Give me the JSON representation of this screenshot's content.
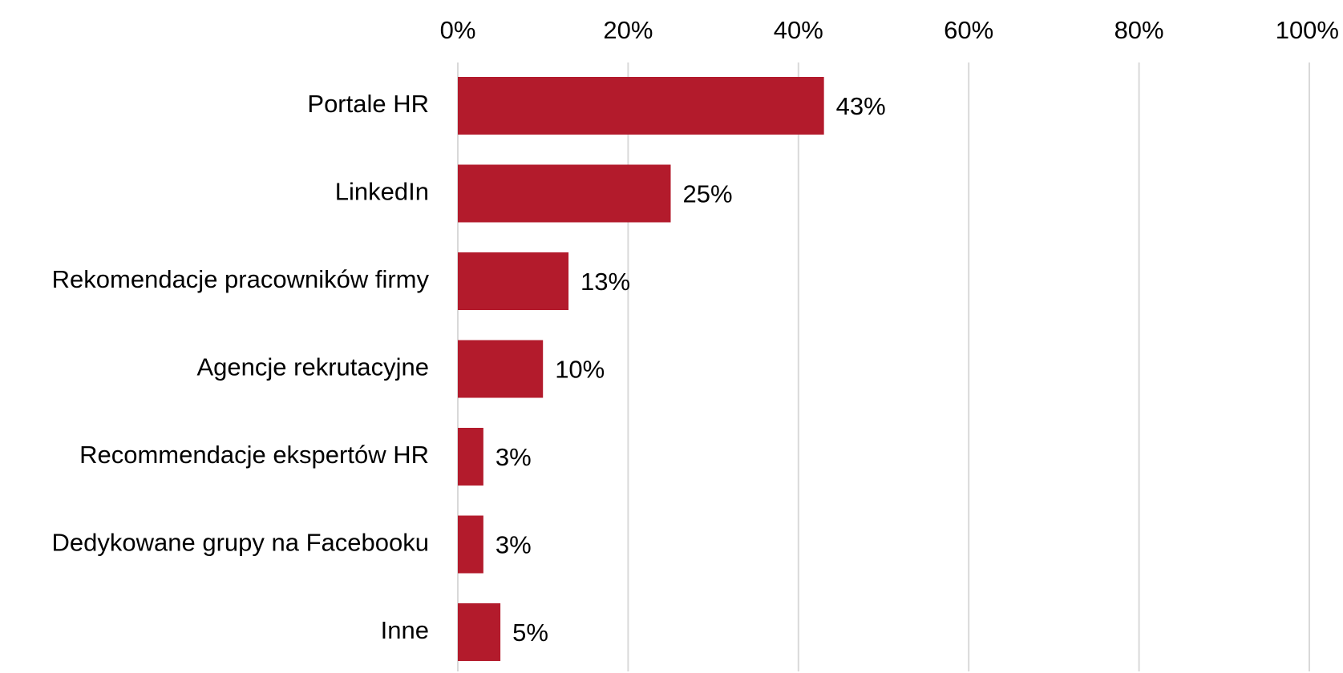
{
  "chart_data": {
    "type": "bar",
    "orientation": "horizontal",
    "categories": [
      "Portale HR",
      "LinkedIn",
      "Rekomendacje pracowników firmy",
      "Agencje rekrutacyjne",
      "Recommendacje ekspertów HR",
      "Dedykowane grupy na Facebooku",
      "Inne"
    ],
    "values": [
      43,
      25,
      13,
      10,
      3,
      3,
      5
    ],
    "data_labels": [
      "43%",
      "25%",
      "13%",
      "10%",
      "3%",
      "3%",
      "5%"
    ],
    "x_ticks": [
      "0%",
      "20%",
      "40%",
      "60%",
      "80%",
      "100%"
    ],
    "xlim": [
      0,
      100
    ],
    "x_axis_position": "top",
    "grid": true,
    "legend": "none",
    "title": "",
    "xlabel": "",
    "ylabel": "",
    "bar_color": "#b31b2c",
    "grid_color": "#d9d9d9"
  }
}
